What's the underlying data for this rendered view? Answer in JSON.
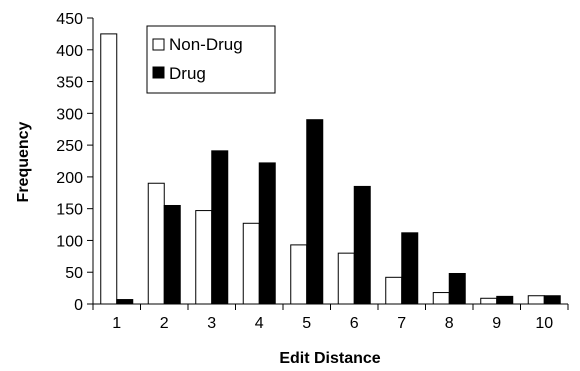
{
  "chart_data": {
    "type": "bar",
    "title": "",
    "xlabel": "Edit Distance",
    "ylabel": "Frequency",
    "categories": [
      "1",
      "2",
      "3",
      "4",
      "5",
      "6",
      "7",
      "8",
      "9",
      "10"
    ],
    "series": [
      {
        "name": "Non-Drug",
        "color": "#ffffff",
        "values": [
          425,
          190,
          147,
          127,
          93,
          80,
          42,
          18,
          9,
          13
        ]
      },
      {
        "name": "Drug",
        "color": "#000000",
        "values": [
          7,
          155,
          241,
          222,
          290,
          185,
          112,
          48,
          12,
          13
        ]
      }
    ],
    "yticks": [
      "0",
      "50",
      "100",
      "150",
      "200",
      "250",
      "300",
      "350",
      "400",
      "450"
    ],
    "ylim": [
      0,
      450
    ],
    "grid": false,
    "legend_position": "top-left inside plot"
  }
}
